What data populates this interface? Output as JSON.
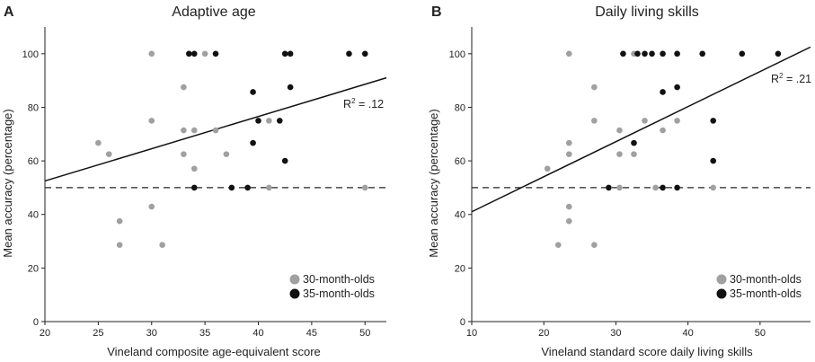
{
  "chart_data": [
    {
      "type": "scatter",
      "panel_label": "A",
      "title": "Adaptive age",
      "xlabel": "Vineland composite age-equivalent score",
      "ylabel": "Mean accuracy (percentage)",
      "xlim": [
        20,
        52
      ],
      "ylim": [
        0,
        110
      ],
      "xticks": [
        "20",
        "25",
        "30",
        "35",
        "40",
        "45",
        "50"
      ],
      "yticks": [
        "0",
        "20",
        "40",
        "60",
        "80",
        "100"
      ],
      "r2_prefix": "R",
      "r2_sup": "2",
      "r2_value": " = .12",
      "fit_line": [
        [
          20,
          52.5
        ],
        [
          52,
          91
        ]
      ],
      "chance_line": 50,
      "legend": [
        "30-month-olds",
        "35-month-olds"
      ],
      "series": [
        {
          "name": "30-month-olds",
          "color": "#a0a0a0",
          "points": [
            [
              25,
              66.7
            ],
            [
              26,
              62.5
            ],
            [
              27,
              37.5
            ],
            [
              27,
              28.6
            ],
            [
              30,
              100
            ],
            [
              30,
              75
            ],
            [
              30,
              42.9
            ],
            [
              31,
              28.6
            ],
            [
              33,
              87.5
            ],
            [
              33,
              71.4
            ],
            [
              33,
              62.5
            ],
            [
              34,
              71.4
            ],
            [
              34,
              57.1
            ],
            [
              35,
              100
            ],
            [
              36,
              71.4
            ],
            [
              37,
              62.5
            ],
            [
              41,
              75
            ],
            [
              41,
              50
            ],
            [
              50,
              50
            ]
          ]
        },
        {
          "name": "35-month-olds",
          "color": "#111111",
          "points": [
            [
              33.5,
              100
            ],
            [
              34,
              100
            ],
            [
              36,
              100
            ],
            [
              34,
              50
            ],
            [
              37.5,
              50
            ],
            [
              39,
              50
            ],
            [
              39.5,
              85.7
            ],
            [
              39.5,
              66.7
            ],
            [
              40,
              75
            ],
            [
              42,
              75
            ],
            [
              42.5,
              100
            ],
            [
              43,
              100
            ],
            [
              43,
              87.5
            ],
            [
              42.5,
              60
            ],
            [
              48.5,
              100
            ],
            [
              50,
              100
            ]
          ]
        }
      ]
    },
    {
      "type": "scatter",
      "panel_label": "B",
      "title": "Daily living skills",
      "xlabel": "Vineland standard score daily living skills",
      "ylabel": "Mean accuracy (percentage)",
      "xlim": [
        10,
        57
      ],
      "ylim": [
        0,
        110
      ],
      "xticks": [
        "10",
        "20",
        "30",
        "40",
        "50"
      ],
      "yticks": [
        "0",
        "20",
        "40",
        "60",
        "80",
        "100"
      ],
      "r2_prefix": "R",
      "r2_sup": "2",
      "r2_value": " = .21",
      "fit_line": [
        [
          10,
          41
        ],
        [
          57,
          102.5
        ]
      ],
      "chance_line": 50,
      "legend": [
        "30-month-olds",
        "35-month-olds"
      ],
      "series": [
        {
          "name": "30-month-olds",
          "color": "#a0a0a0",
          "points": [
            [
              20.5,
              57.1
            ],
            [
              22,
              28.6
            ],
            [
              23.5,
              100
            ],
            [
              23.5,
              66.7
            ],
            [
              23.5,
              62.5
            ],
            [
              23.5,
              42.9
            ],
            [
              23.5,
              37.5
            ],
            [
              27,
              87.5
            ],
            [
              27,
              75
            ],
            [
              27,
              28.6
            ],
            [
              30.5,
              71.4
            ],
            [
              30.5,
              62.5
            ],
            [
              30.5,
              50
            ],
            [
              32.5,
              100
            ],
            [
              32.5,
              62.5
            ],
            [
              34,
              75
            ],
            [
              35.5,
              50
            ],
            [
              36.5,
              71.4
            ],
            [
              38.5,
              100
            ],
            [
              38.5,
              75
            ],
            [
              43.5,
              50
            ]
          ]
        },
        {
          "name": "35-month-olds",
          "color": "#111111",
          "points": [
            [
              31,
              100
            ],
            [
              33,
              100
            ],
            [
              34,
              100
            ],
            [
              35,
              100
            ],
            [
              36.5,
              100
            ],
            [
              38.5,
              100
            ],
            [
              42,
              100
            ],
            [
              47.5,
              100
            ],
            [
              52.5,
              100
            ],
            [
              29,
              50
            ],
            [
              32.5,
              66.7
            ],
            [
              36.5,
              85.7
            ],
            [
              36.5,
              50
            ],
            [
              38.5,
              87.5
            ],
            [
              38.5,
              50
            ],
            [
              43.5,
              75
            ],
            [
              43.5,
              60
            ]
          ]
        }
      ]
    }
  ]
}
